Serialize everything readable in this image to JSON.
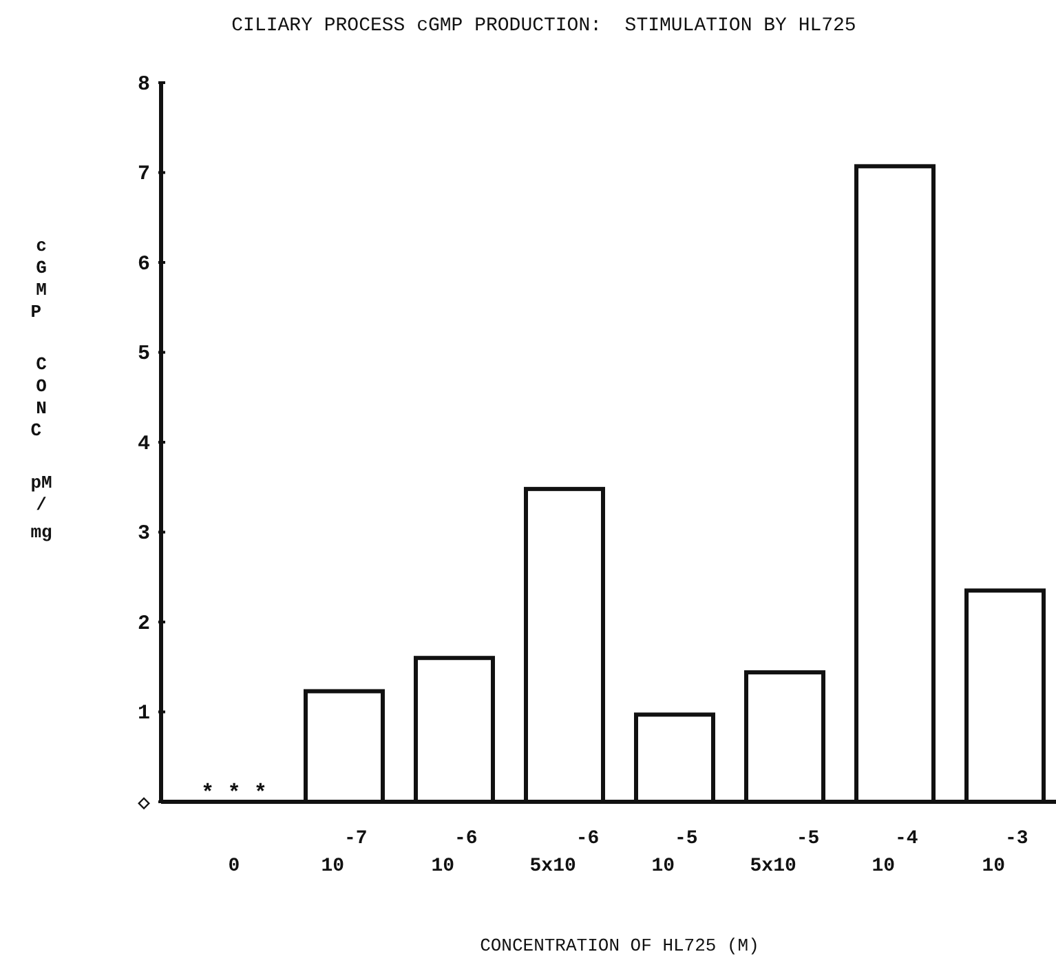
{
  "chart_data": {
    "type": "bar",
    "title": "CILIARY PROCESS cGMP PRODUCTION:  STIMULATION BY HL725",
    "xlabel": "CONCENTRATION OF HL725 (M)",
    "ylabel": "cGMP CONC pM/mg",
    "categories": [
      "0",
      "10$^{-7}$",
      "10$^{-6}$",
      "5x10$^{-6}$",
      "10$^{-5}$",
      "5x10$^{-5}$",
      "10$^{-4}$",
      "10$^{-3}$"
    ],
    "values": [
      0,
      1.23,
      1.6,
      3.48,
      0.97,
      1.44,
      7.07,
      2.35
    ],
    "color": "#ffffff",
    "ylim": [
      0,
      8
    ],
    "yticks": [
      {
        "value": 0,
        "label": "◇"
      },
      1,
      2,
      3,
      4,
      5,
      6,
      7,
      8
    ],
    "grid": false,
    "annotations": [
      {
        "text": "* * *",
        "x": "0",
        "y": 0
      }
    ]
  }
}
